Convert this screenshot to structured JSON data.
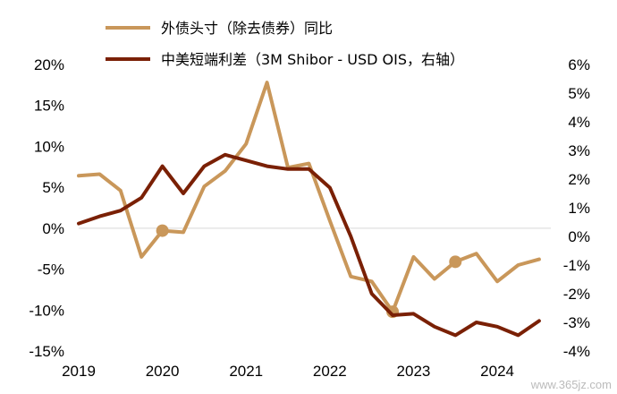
{
  "chart_data": {
    "type": "line",
    "title": "",
    "series": [
      {
        "name": "外债头寸（除去债券）同比",
        "axis": "left",
        "color": "#C9975A",
        "x": [
          2019.0,
          2019.25,
          2019.5,
          2019.75,
          2020.0,
          2020.25,
          2020.5,
          2020.75,
          2021.0,
          2021.25,
          2021.5,
          2021.75,
          2022.0,
          2022.25,
          2022.5,
          2022.75,
          2023.0,
          2023.25,
          2023.5,
          2023.75,
          2024.0,
          2024.25,
          2024.5
        ],
        "values": [
          6.4,
          6.6,
          4.6,
          -3.5,
          -0.3,
          -0.5,
          5.1,
          7.0,
          10.3,
          17.8,
          7.4,
          7.9,
          0.9,
          -5.9,
          -6.5,
          -10.2,
          -3.5,
          -6.2,
          -4.1,
          -3.1,
          -6.5,
          -4.5,
          -3.8
        ],
        "markers_at": [
          2020.0,
          2022.75,
          2023.5
        ]
      },
      {
        "name": "中美短端利差（3M Shibor - USD OIS，右轴）",
        "axis": "right",
        "color": "#7A2005",
        "x": [
          2019.0,
          2019.25,
          2019.5,
          2019.75,
          2020.0,
          2020.25,
          2020.5,
          2020.75,
          2021.0,
          2021.25,
          2021.5,
          2021.75,
          2022.0,
          2022.25,
          2022.5,
          2022.75,
          2023.0,
          2023.25,
          2023.5,
          2023.75,
          2024.0,
          2024.25,
          2024.5
        ],
        "values": [
          0.45,
          0.7,
          0.9,
          1.35,
          2.45,
          1.5,
          2.45,
          2.85,
          2.65,
          2.45,
          2.35,
          2.35,
          1.7,
          0.0,
          -2.0,
          -2.75,
          -2.7,
          -3.15,
          -3.45,
          -3.0,
          -3.15,
          -3.45,
          -2.95
        ]
      }
    ],
    "x_ticks": [
      "2019",
      "2020",
      "2021",
      "2022",
      "2023",
      "2024"
    ],
    "x_tick_values": [
      2019,
      2020,
      2021,
      2022,
      2023,
      2024
    ],
    "xlim": [
      2019.0,
      2024.64
    ],
    "y_left": {
      "ylim": [
        -15,
        20
      ],
      "ticks": [
        20,
        15,
        10,
        5,
        0,
        -5,
        -10,
        -15
      ],
      "tick_labels": [
        "20%",
        "15%",
        "10%",
        "5%",
        "0%",
        "-5%",
        "-10%",
        "-15%"
      ]
    },
    "y_right": {
      "ylim": [
        -4,
        6
      ],
      "ticks": [
        6,
        5,
        4,
        3,
        2,
        1,
        0,
        -1,
        -2,
        -3,
        -4
      ],
      "tick_labels": [
        "6%",
        "5%",
        "4%",
        "3%",
        "2%",
        "1%",
        "0%",
        "-1%",
        "-2%",
        "-3%",
        "-4%"
      ]
    },
    "legend_position": "top-left",
    "grid": false
  },
  "watermark": "www.365jz.com"
}
